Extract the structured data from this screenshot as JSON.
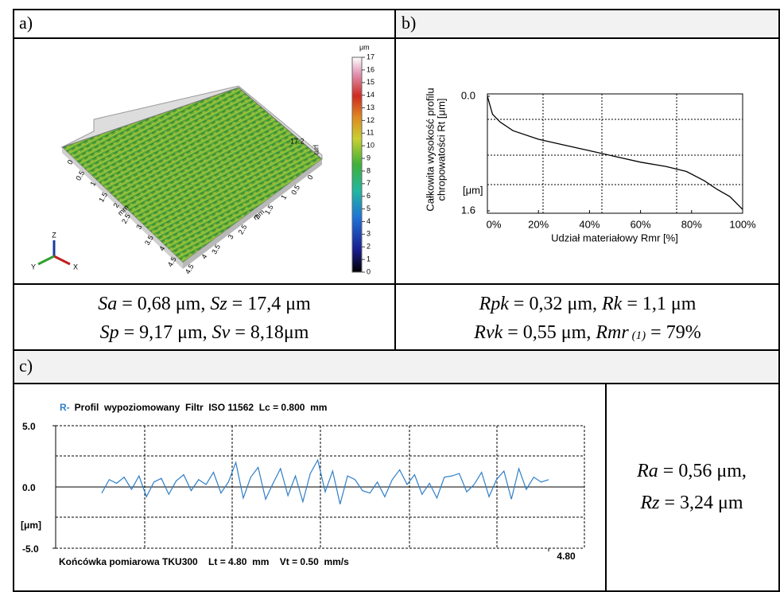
{
  "panel_a": {
    "label": "a)",
    "left_axis_ticks": [
      "0",
      "0.5",
      "1",
      "1.5",
      "2",
      "2.5",
      "3",
      "3.5",
      "4",
      "4.5"
    ],
    "right_axis_ticks": [
      "4.5",
      "4",
      "3.5",
      "3",
      "2.5",
      "2",
      "1.5",
      "1",
      "0.5",
      "0"
    ],
    "left_axis_unit": "mm",
    "right_axis_unit": "mm",
    "z_max": "17.2",
    "z_unit": "μm",
    "colorbar": {
      "unit": "μm",
      "ticks": [
        0,
        1,
        2,
        3,
        4,
        5,
        6,
        7,
        8,
        9,
        10,
        11,
        12,
        13,
        14,
        15,
        16,
        17
      ],
      "lim": [
        0,
        17
      ]
    },
    "triad": [
      "Z",
      "X",
      "Y"
    ],
    "params": [
      [
        "Sa",
        " = 0,68 μm, ",
        "Sz",
        " = 17,4 μm"
      ],
      [
        "Sp",
        " = 9,17 μm, ",
        "Sv",
        " = 8,18μm"
      ]
    ]
  },
  "panel_b": {
    "label": "b)",
    "chart": {
      "type": "line",
      "ylabel": [
        "Całkowita wysokość profilu",
        "chropowatości Rt [μm]"
      ],
      "yunit": "[μm]",
      "xlabel": "Udział materiałowy Rmr [%]",
      "x": [
        0,
        2,
        5,
        10,
        20,
        30,
        40,
        50,
        60,
        70,
        78,
        85,
        90,
        95,
        100
      ],
      "values": [
        0,
        0.25,
        0.36,
        0.48,
        0.6,
        0.68,
        0.76,
        0.84,
        0.92,
        0.98,
        1.05,
        1.18,
        1.3,
        1.4,
        1.58
      ],
      "color": "#000000",
      "xlim": [
        0,
        100
      ],
      "ylim": [
        0,
        1.6
      ],
      "y_inverted": true,
      "xticks": [
        {
          "value": 0,
          "label": "0%"
        },
        {
          "value": 20,
          "label": "20%"
        },
        {
          "value": 40,
          "label": "40%"
        },
        {
          "value": 60,
          "label": "60%"
        },
        {
          "value": 80,
          "label": "80%"
        },
        {
          "value": 100,
          "label": "100%"
        }
      ],
      "yticks": [
        {
          "value": 0,
          "label": "0.0"
        },
        1.6
      ]
    },
    "params": [
      [
        "Rpk",
        " = 0,32 μm, ",
        "Rk",
        " = 1,1 μm"
      ],
      [
        "Rvk",
        " = 0,55 μm, ",
        "Rmr",
        "(1)",
        " = 79%"
      ]
    ]
  },
  "panel_c": {
    "label": "c)",
    "chart": {
      "type": "line",
      "title_prefix": "R-",
      "title": "Profil  wypoziomowany  Filtr  ISO 11562  Lc = 0.800  mm",
      "footer": "Końcówka pomiarowa TKU300    Lt = 4.80  mm    Vt = 0.50  mm/s",
      "yunit": "[μm]",
      "color": "#2f7fc8",
      "x": [
        0,
        0.08,
        0.16,
        0.24,
        0.32,
        0.4,
        0.48,
        0.56,
        0.64,
        0.72,
        0.8,
        0.88,
        0.96,
        1.04,
        1.12,
        1.2,
        1.28,
        1.36,
        1.44,
        1.52,
        1.6,
        1.68,
        1.76,
        1.84,
        1.92,
        2,
        2.08,
        2.16,
        2.24,
        2.32,
        2.4,
        2.48,
        2.56,
        2.64,
        2.72,
        2.8,
        2.88,
        2.96,
        3.04,
        3.12,
        3.2,
        3.28,
        3.36,
        3.44,
        3.52,
        3.6,
        3.68,
        3.76,
        3.84,
        3.92,
        4,
        4.08,
        4.16,
        4.24,
        4.32,
        4.4,
        4.48,
        4.56,
        4.64,
        4.72,
        4.8
      ],
      "values": [
        -0.5,
        0.6,
        0.3,
        0.8,
        -0.2,
        0.9,
        -0.8,
        0.4,
        0.7,
        -0.6,
        0.5,
        1.0,
        -0.3,
        0.6,
        0.2,
        1.2,
        -0.5,
        0.4,
        2.0,
        -0.9,
        0.8,
        1.6,
        -1.0,
        0.3,
        1.5,
        -0.7,
        0.9,
        -1.2,
        1.1,
        2.2,
        -0.4,
        1.3,
        -1.4,
        0.9,
        0.6,
        -0.3,
        -0.5,
        0.4,
        -0.8,
        0.6,
        1.4,
        0.2,
        1.0,
        -0.6,
        0.3,
        -0.9,
        0.8,
        0.9,
        1.1,
        -0.4,
        0.2,
        1.2,
        -0.8,
        0.6,
        1.3,
        -1.0,
        1.5,
        -0.2,
        0.8,
        0.4,
        0.6
      ],
      "xlim": [
        0,
        4.8
      ],
      "ylim": [
        -5,
        5
      ],
      "xticks": [
        {
          "value": 4.8,
          "label": "4.80"
        }
      ],
      "yticks": [
        {
          "value": 5,
          "label": "5.0"
        },
        {
          "value": 0,
          "label": "0.0"
        },
        {
          "value": -5,
          "label": "-5.0"
        }
      ]
    },
    "params": [
      [
        "Ra",
        " = 0,56 μm,"
      ],
      [
        "Rz",
        " = 3,24 μm"
      ]
    ]
  }
}
